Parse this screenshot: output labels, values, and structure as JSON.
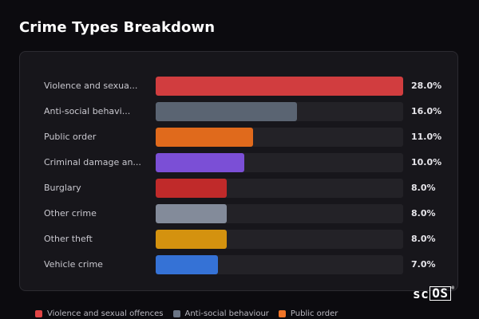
{
  "title": "Crime Types Breakdown",
  "chart_data": {
    "type": "bar",
    "orientation": "horizontal",
    "title": "Crime Types Breakdown",
    "xlim": [
      0,
      28
    ],
    "grid": false,
    "legend_position": "bottom",
    "categories": [
      "Violence and sexua...",
      "Anti-social behavi...",
      "Public order",
      "Criminal damage an...",
      "Burglary",
      "Other crime",
      "Other theft",
      "Vehicle crime"
    ],
    "values": [
      28.0,
      16.0,
      11.0,
      10.0,
      8.0,
      8.0,
      8.0,
      7.0
    ],
    "value_labels": [
      "28.0%",
      "16.0%",
      "11.0%",
      "10.0%",
      "8.0%",
      "8.0%",
      "8.0%",
      "7.0%"
    ],
    "colors": [
      "#d13d3f",
      "#5a6472",
      "#e06a1c",
      "#7b4fd6",
      "#c02a2a",
      "#838b9a",
      "#d4920f",
      "#3572d6"
    ],
    "legend": [
      {
        "label": "Violence and sexual offences",
        "color": "#e04444"
      },
      {
        "label": "Anti-social behaviour",
        "color": "#6b7585"
      },
      {
        "label": "Public order",
        "color": "#ef7427"
      }
    ]
  },
  "watermark": {
    "brand": "sc",
    "boxed": "OS",
    "mark": "®"
  }
}
